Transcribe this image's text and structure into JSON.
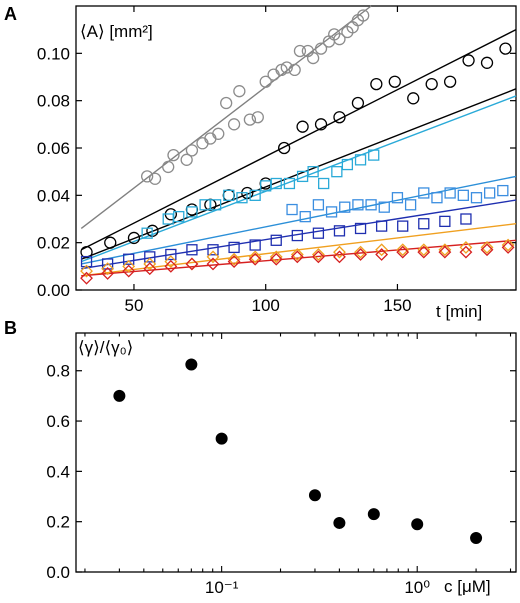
{
  "chart_data": [
    {
      "panel_label": "A",
      "type": "scatter",
      "title": "",
      "ylabel": "⟨A⟩ [mm²]",
      "xlabel": "t [min]",
      "xlim": [
        28,
        195
      ],
      "ylim": [
        0,
        0.12
      ],
      "xticks": [
        50,
        100,
        150
      ],
      "xtick_labels": [
        "50",
        "100",
        "150"
      ],
      "yticks": [
        0,
        0.02,
        0.04,
        0.06,
        0.08,
        0.1
      ],
      "ytick_labels": [
        "0.00",
        "0.02",
        "0.04",
        "0.06",
        "0.08",
        "0.10"
      ],
      "grid": false,
      "series": [
        {
          "marker": "circle",
          "color": "#8c8c8c",
          "x": [
            55,
            58,
            63,
            65,
            70,
            72,
            76,
            79,
            82,
            85,
            88,
            90,
            94,
            97,
            100,
            103,
            106,
            108,
            111,
            113,
            116,
            118,
            121,
            124,
            126,
            128,
            131,
            133,
            135,
            137
          ],
          "y": [
            0.048,
            0.047,
            0.052,
            0.057,
            0.055,
            0.059,
            0.062,
            0.064,
            0.066,
            0.079,
            0.07,
            0.084,
            0.072,
            0.073,
            0.088,
            0.091,
            0.093,
            0.094,
            0.093,
            0.101,
            0.101,
            0.098,
            0.102,
            0.105,
            0.108,
            0.106,
            0.109,
            0.111,
            0.114,
            0.116
          ],
          "fit": {
            "x": [
              30,
              140
            ],
            "y": [
              0.026,
              0.12
            ],
            "color": "#808080"
          }
        },
        {
          "marker": "circle",
          "color": "#000000",
          "x": [
            32,
            41,
            50,
            57,
            64,
            72,
            79,
            86,
            93,
            100,
            107,
            114,
            121,
            128,
            135,
            142,
            149,
            156,
            163,
            170,
            177,
            184,
            191
          ],
          "y": [
            0.016,
            0.02,
            0.022,
            0.025,
            0.032,
            0.034,
            0.036,
            0.04,
            0.041,
            0.045,
            0.06,
            0.069,
            0.07,
            0.073,
            0.079,
            0.087,
            0.088,
            0.081,
            0.087,
            0.088,
            0.097,
            0.096,
            0.102
          ],
          "fit": {
            "x": [
              30,
              195
            ],
            "y": [
              0.017,
              0.11
            ],
            "color": "#000000"
          }
        },
        {
          "marker": "circle",
          "color": "#000000",
          "x": [],
          "y": [],
          "fit": {
            "x": [
              30,
              195
            ],
            "y": [
              0.013,
              0.085
            ],
            "color": "#000000"
          }
        },
        {
          "marker": "square",
          "color": "#2aaad8",
          "x": [
            55,
            63,
            67,
            72,
            77,
            81,
            86,
            91,
            96,
            100,
            104,
            109,
            114,
            118,
            122,
            127,
            131,
            136,
            141
          ],
          "y": [
            0.024,
            0.03,
            0.031,
            0.033,
            0.036,
            0.036,
            0.04,
            0.039,
            0.04,
            0.044,
            0.045,
            0.045,
            0.048,
            0.05,
            0.045,
            0.05,
            0.053,
            0.055,
            0.057
          ],
          "fit": {
            "x": [
              30,
              195
            ],
            "y": [
              0.012,
              0.082
            ],
            "color": "#2aaad8"
          }
        },
        {
          "marker": "square",
          "color": "#3b8ee0",
          "x": [
            110,
            115,
            120,
            125,
            130,
            135,
            140,
            145,
            150,
            155,
            160,
            165,
            170,
            175,
            180,
            185,
            190
          ],
          "y": [
            0.034,
            0.031,
            0.036,
            0.033,
            0.035,
            0.036,
            0.036,
            0.035,
            0.039,
            0.036,
            0.041,
            0.039,
            0.041,
            0.04,
            0.039,
            0.041,
            0.042
          ],
          "fit": {
            "x": [
              30,
              195
            ],
            "y": [
              0.011,
              0.048
            ],
            "color": "#2b8fd8"
          }
        },
        {
          "marker": "square",
          "color": "#1f2fb0",
          "x": [
            32,
            40,
            48,
            56,
            64,
            72,
            80,
            88,
            96,
            104,
            112,
            120,
            128,
            136,
            144,
            152,
            160,
            168,
            176
          ],
          "y": [
            0.012,
            0.011,
            0.013,
            0.014,
            0.015,
            0.017,
            0.017,
            0.018,
            0.019,
            0.021,
            0.023,
            0.024,
            0.025,
            0.026,
            0.027,
            0.027,
            0.028,
            0.029,
            0.03
          ],
          "fit": {
            "x": [
              30,
              195
            ],
            "y": [
              0.009,
              0.038
            ],
            "color": "#1f2fb0"
          }
        },
        {
          "marker": "diamond",
          "color": "#f0a020",
          "x": [
            32,
            40,
            48,
            56,
            64,
            72,
            80,
            88,
            96,
            104,
            112,
            120,
            128,
            136,
            144,
            152,
            160,
            168,
            176,
            184,
            192
          ],
          "y": [
            0.008,
            0.009,
            0.01,
            0.011,
            0.012,
            0.011,
            0.014,
            0.013,
            0.014,
            0.014,
            0.015,
            0.015,
            0.016,
            0.016,
            0.017,
            0.017,
            0.017,
            0.017,
            0.018,
            0.018,
            0.019
          ],
          "fit": {
            "x": [
              30,
              195
            ],
            "y": [
              0.006,
              0.028
            ],
            "color": "#f0a020"
          }
        },
        {
          "marker": "diamond",
          "color": "#d62020",
          "x": [
            32,
            40,
            48,
            56,
            64,
            72,
            80,
            88,
            96,
            104,
            112,
            120,
            128,
            136,
            144,
            152,
            160,
            168,
            176,
            184,
            192
          ],
          "y": [
            0.005,
            0.007,
            0.008,
            0.009,
            0.01,
            0.011,
            0.011,
            0.012,
            0.013,
            0.013,
            0.014,
            0.014,
            0.014,
            0.015,
            0.015,
            0.016,
            0.016,
            0.016,
            0.016,
            0.017,
            0.018
          ],
          "fit": {
            "x": [
              30,
              195
            ],
            "y": [
              0.006,
              0.021
            ],
            "color": "#d62020"
          }
        }
      ]
    },
    {
      "panel_label": "B",
      "type": "scatter",
      "title": "",
      "ylabel": "⟨γ⟩/⟨γ₀⟩",
      "xlabel": "c [μM]",
      "xscale": "log",
      "xlim": [
        0.018,
        3.2
      ],
      "ylim": [
        0,
        0.95
      ],
      "xticks": [
        0.1,
        1
      ],
      "xtick_labels": [
        "10⁻¹",
        "10⁰"
      ],
      "yticks": [
        0,
        0.2,
        0.4,
        0.6,
        0.8
      ],
      "ytick_labels": [
        "0.0",
        "0.2",
        "0.4",
        "0.6",
        "0.8"
      ],
      "grid": false,
      "series": [
        {
          "marker": "filled-circle",
          "color": "#000000",
          "x": [
            0.03,
            0.07,
            0.1,
            0.3,
            0.4,
            0.6,
            1.0,
            2.0
          ],
          "y": [
            0.7,
            0.825,
            0.53,
            0.305,
            0.195,
            0.23,
            0.19,
            0.135
          ]
        }
      ]
    }
  ]
}
